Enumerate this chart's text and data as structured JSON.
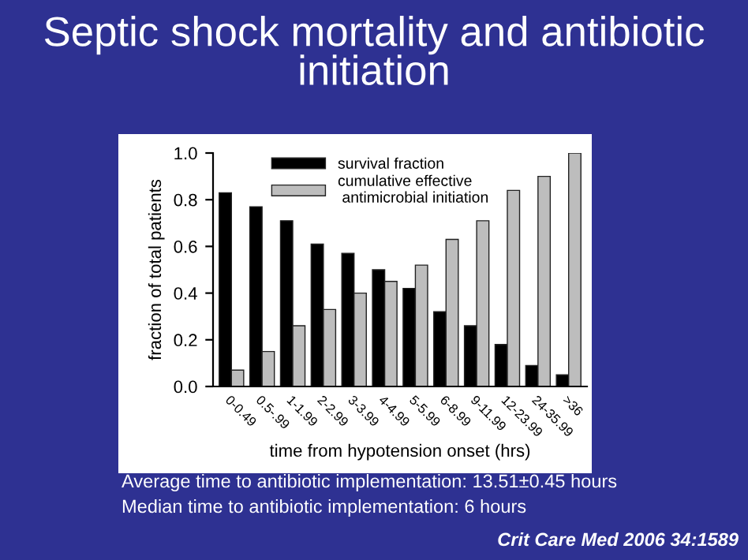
{
  "chart_data": {
    "type": "bar",
    "title": "Septic shock mortality and antibiotic initiation",
    "xlabel": "time from hypotension onset (hrs)",
    "ylabel": "fraction of total patients",
    "categories": [
      "0-0.49",
      "0.5-.99",
      "1-1.99",
      "2-2.99",
      "3-3.99",
      "4-4.99",
      "5-5.99",
      "6-8.99",
      "9-11.99",
      "12-23.99",
      "24-35.99",
      ">36"
    ],
    "series": [
      {
        "name": "survival fraction",
        "color": "#000000",
        "values": [
          0.83,
          0.77,
          0.71,
          0.61,
          0.57,
          0.5,
          0.42,
          0.32,
          0.26,
          0.18,
          0.09,
          0.05
        ]
      },
      {
        "name": "cumulative effective\n antimicrobial initiation",
        "color": "#bdbdbd",
        "values": [
          0.07,
          0.15,
          0.26,
          0.33,
          0.4,
          0.45,
          0.52,
          0.63,
          0.71,
          0.84,
          0.9,
          1.0
        ]
      }
    ],
    "ylim": [
      0,
      1.0
    ],
    "yticks": [
      {
        "value": 0,
        "label": "0.0"
      },
      {
        "value": 0.2,
        "label": "0.2"
      },
      {
        "value": 0.4,
        "label": "0.4"
      },
      {
        "value": 0.6,
        "label": "0.6"
      },
      {
        "value": 0.8,
        "label": "0.8"
      },
      {
        "value": 1.0,
        "label": "1.0"
      }
    ],
    "grid": false,
    "legend": "top left",
    "annotations": [
      "Average time to antibiotic implementation: 13.51±0.45 hours",
      "Median time to antibiotic implementation: 6 hours",
      "Crit Care Med 2006 34:1589"
    ]
  }
}
